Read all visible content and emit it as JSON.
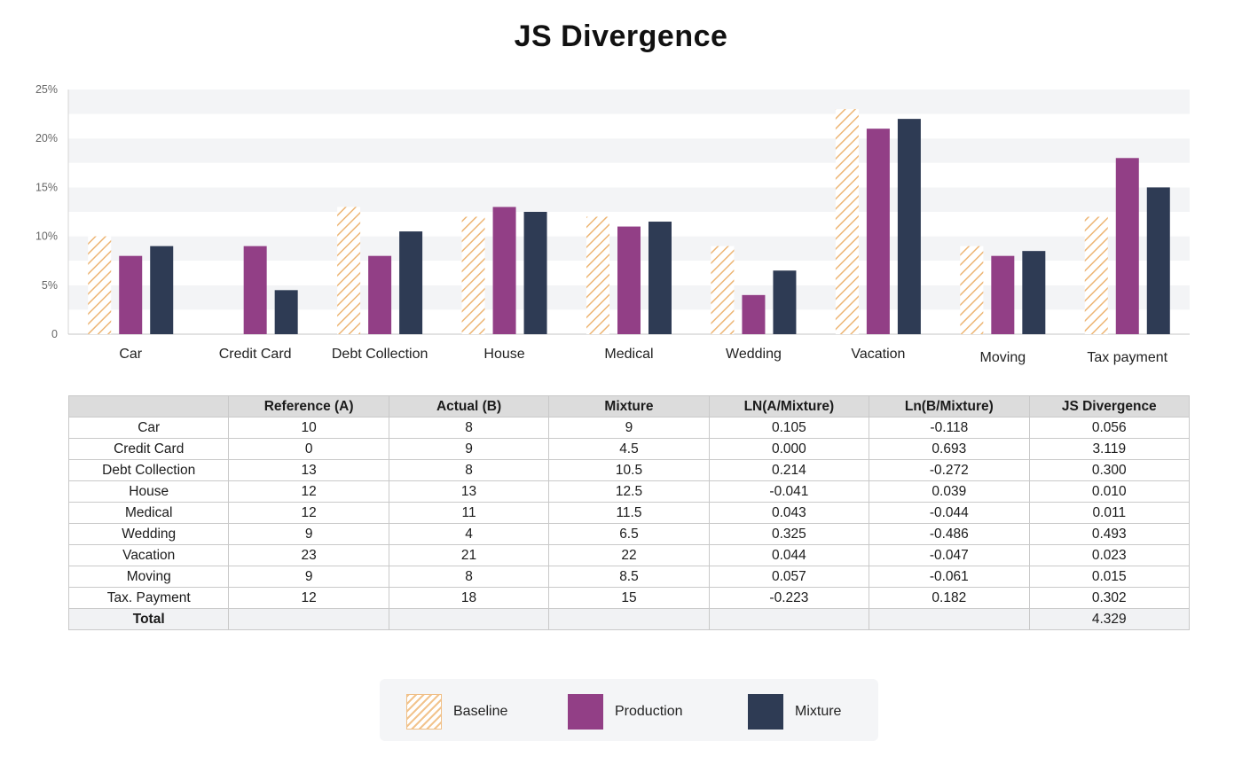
{
  "title": "JS Divergence",
  "colors": {
    "baseline": "#e9a85a",
    "production": "#923f86",
    "mixture": "#2e3b54"
  },
  "chart_data": {
    "type": "bar",
    "title": "JS Divergence",
    "categories": [
      "Car",
      "Credit Card",
      "Debt Collection",
      "House",
      "Medical",
      "Wedding",
      "Vacation",
      "Moving",
      "Tax payment"
    ],
    "series": [
      {
        "name": "Baseline",
        "values": [
          10,
          0,
          13,
          12,
          12,
          9,
          23,
          9,
          12
        ]
      },
      {
        "name": "Production",
        "values": [
          8,
          9,
          8,
          13,
          11,
          4,
          21,
          8,
          18
        ]
      },
      {
        "name": "Mixture",
        "values": [
          9,
          4.5,
          10.5,
          12.5,
          11.5,
          6.5,
          22,
          8.5,
          15
        ]
      }
    ],
    "ylim": [
      0,
      25
    ],
    "yticks": [
      0,
      5,
      10,
      15,
      20,
      25
    ],
    "ytick_labels": [
      "0",
      "5%",
      "10%",
      "15%",
      "20%",
      "25%"
    ],
    "grid": "alternating horizontal bands",
    "legend": "bottom-center"
  },
  "table": {
    "headers": [
      "",
      "Reference (A)",
      "Actual (B)",
      "Mixture",
      "LN(A/Mixture)",
      "Ln(B/Mixture)",
      "JS Divergence"
    ],
    "rows": [
      [
        "Car",
        "10",
        "8",
        "9",
        "0.105",
        "-0.118",
        "0.056"
      ],
      [
        "Credit Card",
        "0",
        "9",
        "4.5",
        "0.000",
        "0.693",
        "3.119"
      ],
      [
        "Debt Collection",
        "13",
        "8",
        "10.5",
        "0.214",
        "-0.272",
        "0.300"
      ],
      [
        "House",
        "12",
        "13",
        "12.5",
        "-0.041",
        "0.039",
        "0.010"
      ],
      [
        "Medical",
        "12",
        "11",
        "11.5",
        "0.043",
        "-0.044",
        "0.011"
      ],
      [
        "Wedding",
        "9",
        "4",
        "6.5",
        "0.325",
        "-0.486",
        "0.493"
      ],
      [
        "Vacation",
        "23",
        "21",
        "22",
        "0.044",
        "-0.047",
        "0.023"
      ],
      [
        "Moving",
        "9",
        "8",
        "8.5",
        "0.057",
        "-0.061",
        "0.015"
      ],
      [
        "Tax. Payment",
        "12",
        "18",
        "15",
        "-0.223",
        "0.182",
        "0.302"
      ]
    ],
    "total": {
      "label": "Total",
      "value": "4.329"
    }
  },
  "legend": {
    "items": [
      {
        "key": "baseline",
        "label": "Baseline"
      },
      {
        "key": "production",
        "label": "Production"
      },
      {
        "key": "mixture",
        "label": "Mixture"
      }
    ]
  }
}
